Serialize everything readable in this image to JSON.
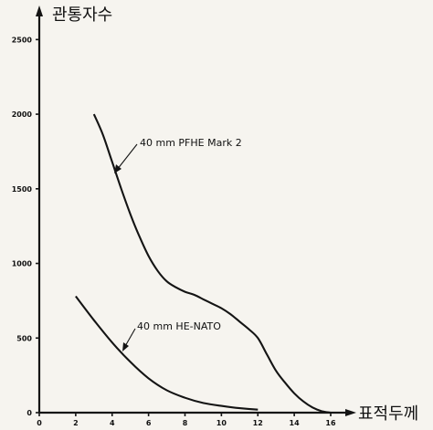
{
  "chart_data": {
    "type": "line",
    "title": "",
    "xlabel": "표적두께",
    "ylabel": "관통자수",
    "xlim": [
      0,
      16
    ],
    "ylim": [
      0,
      2600
    ],
    "xticks": [
      0,
      2,
      4,
      6,
      8,
      10,
      12,
      14,
      16
    ],
    "yticks": [
      0,
      500,
      1000,
      1500,
      2000,
      2500
    ],
    "grid": false,
    "legend": "none",
    "series": [
      {
        "name": "40 mm PFHE Mark 2",
        "x": [
          3.0,
          3.5,
          4.0,
          4.5,
          5.0,
          5.5,
          6.0,
          6.5,
          7.0,
          7.5,
          8.0,
          8.5,
          9.0,
          9.5,
          10.0,
          10.5,
          11.0,
          11.5,
          12.0,
          12.5,
          13.0,
          13.5,
          14.0,
          14.5,
          15.0,
          15.5,
          16.0
        ],
        "values": [
          2000,
          1860,
          1680,
          1500,
          1330,
          1180,
          1050,
          950,
          880,
          840,
          810,
          790,
          760,
          730,
          700,
          660,
          610,
          560,
          500,
          390,
          280,
          200,
          130,
          75,
          35,
          10,
          0
        ]
      },
      {
        "name": "40 mm HE-NATO",
        "x": [
          2.0,
          3.0,
          4.0,
          5.0,
          6.0,
          7.0,
          8.0,
          9.0,
          10.0,
          11.0,
          12.0
        ],
        "values": [
          780,
          620,
          470,
          340,
          230,
          150,
          100,
          65,
          45,
          30,
          20
        ]
      }
    ]
  },
  "colors": {
    "background": "#f6f4ef",
    "ink": "#141414"
  }
}
